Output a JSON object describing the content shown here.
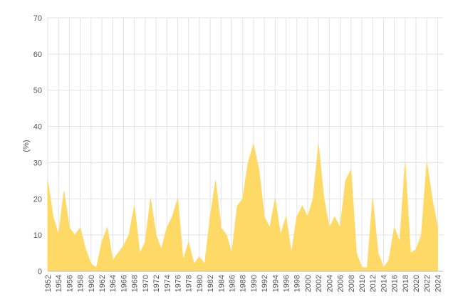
{
  "chart_data": {
    "type": "area",
    "y_label": "(%)",
    "x": [
      1952,
      1953,
      1954,
      1955,
      1956,
      1957,
      1958,
      1959,
      1960,
      1961,
      1962,
      1963,
      1964,
      1965,
      1966,
      1967,
      1968,
      1969,
      1970,
      1971,
      1972,
      1973,
      1974,
      1975,
      1976,
      1977,
      1978,
      1979,
      1980,
      1981,
      1982,
      1983,
      1984,
      1985,
      1986,
      1987,
      1988,
      1989,
      1990,
      1991,
      1992,
      1993,
      1994,
      1995,
      1996,
      1997,
      1998,
      1999,
      2000,
      2001,
      2002,
      2003,
      2004,
      2005,
      2006,
      2007,
      2008,
      2009,
      2010,
      2011,
      2012,
      2013,
      2014,
      2015,
      2016,
      2017,
      2018,
      2019,
      2020,
      2021,
      2022,
      2023,
      2024
    ],
    "values": [
      25,
      15,
      10,
      22,
      12,
      10,
      12,
      6,
      2,
      1,
      8,
      12,
      3,
      5,
      7,
      10,
      18,
      5,
      8,
      20,
      10,
      6,
      12,
      15,
      20,
      3,
      8,
      2,
      4,
      2,
      15,
      25,
      12,
      10,
      5,
      18,
      20,
      30,
      35,
      28,
      15,
      12,
      20,
      10,
      15,
      5,
      15,
      18,
      15,
      20,
      35,
      20,
      12,
      15,
      12,
      25,
      28,
      5,
      1,
      1,
      20,
      5,
      1,
      3,
      12,
      8,
      30,
      5,
      6,
      10,
      30,
      20,
      12
    ],
    "color": "#ffd966",
    "xlim": [
      1952,
      2025
    ],
    "xticks": [
      1952,
      1954,
      1956,
      1958,
      1960,
      1962,
      1964,
      1966,
      1968,
      1970,
      1972,
      1974,
      1976,
      1978,
      1980,
      1982,
      1984,
      1986,
      1988,
      1990,
      1992,
      1994,
      1996,
      1998,
      2000,
      2002,
      2004,
      2006,
      2008,
      2010,
      2012,
      2014,
      2016,
      2018,
      2020,
      2022,
      2024
    ],
    "ylim": [
      0,
      70
    ],
    "yticks": [
      0,
      10,
      20,
      30,
      40,
      50,
      60,
      70
    ],
    "grid": true
  }
}
